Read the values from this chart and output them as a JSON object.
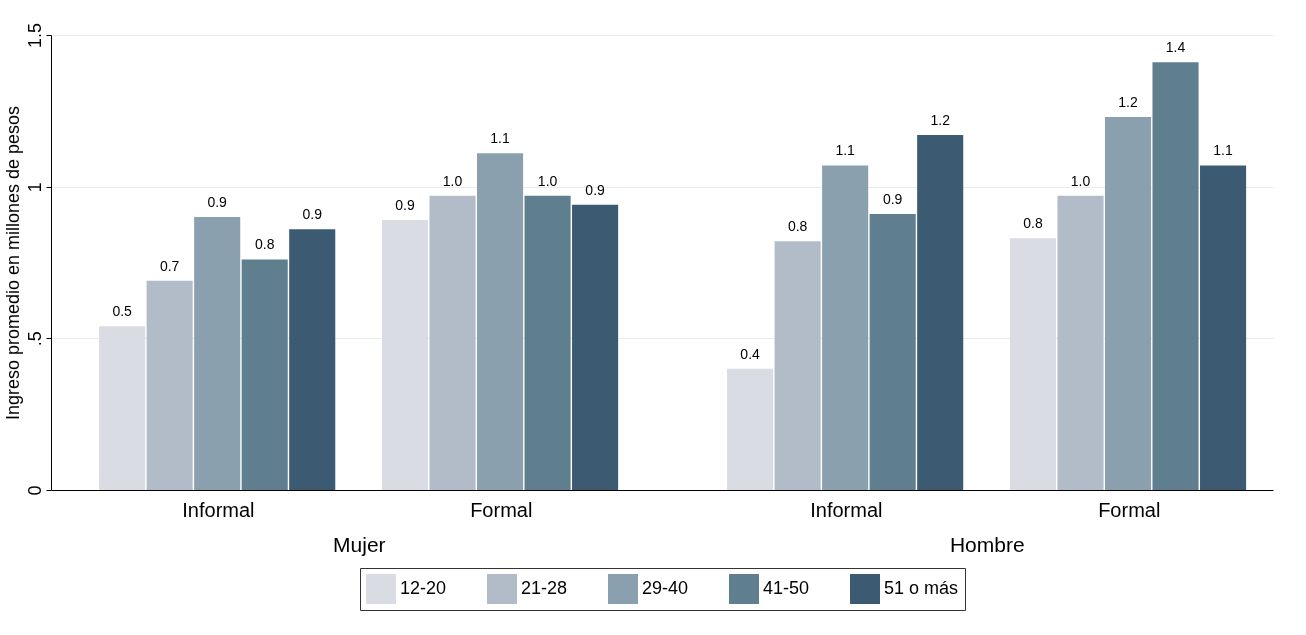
{
  "chart_data": {
    "type": "bar",
    "ylabel": "Ingreso promedio en millones de pesos",
    "categories": [
      "Informal",
      "Formal",
      "Informal",
      "Formal"
    ],
    "annotations": [
      "Mujer",
      "Hombre"
    ],
    "series": [
      {
        "name": "12-20",
        "color": "#d9dde3",
        "values": [
          0.54,
          0.89,
          0.4,
          0.83
        ],
        "value_labels": [
          "0.5",
          "0.9",
          "0.4",
          "0.8"
        ]
      },
      {
        "name": "21-28",
        "color": "#b2bcc8",
        "values": [
          0.69,
          0.97,
          0.82,
          0.97
        ],
        "value_labels": [
          "0.7",
          "1.0",
          "0.8",
          "1.0"
        ]
      },
      {
        "name": "29-40",
        "color": "#8aa0ae",
        "values": [
          0.9,
          1.11,
          1.07,
          1.23
        ],
        "value_labels": [
          "0.9",
          "1.1",
          "1.1",
          "1.2"
        ]
      },
      {
        "name": "41-50",
        "color": "#5f7f8f",
        "values": [
          0.76,
          0.97,
          0.91,
          1.41
        ],
        "value_labels": [
          "0.8",
          "1.0",
          "0.9",
          "1.4"
        ]
      },
      {
        "name": "51 o más",
        "color": "#3d5a73",
        "values": [
          0.86,
          0.94,
          1.17,
          1.07
        ],
        "value_labels": [
          "0.9",
          "0.9",
          "1.2",
          "1.1"
        ]
      }
    ],
    "ylim": [
      0,
      1.5
    ],
    "yticks": [
      0,
      {
        "value": 0.5,
        "label": ".5"
      },
      1,
      1.5
    ],
    "grid": "y",
    "legend": "bottom"
  }
}
